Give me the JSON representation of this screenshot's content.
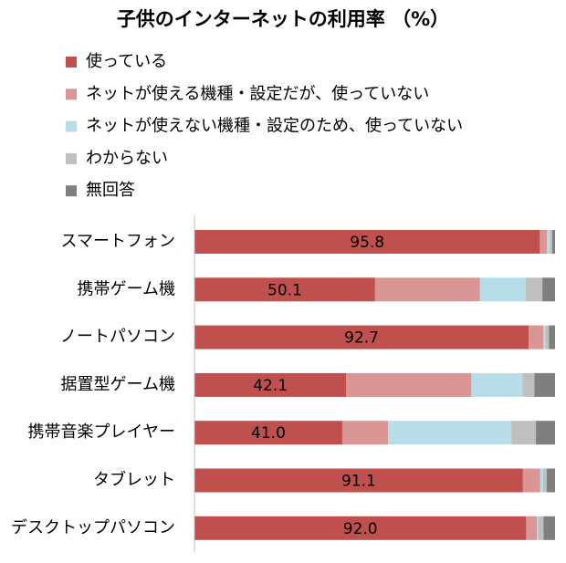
{
  "chart_data": {
    "type": "stacked-bar-horizontal",
    "title": "子供のインターネットの利用率 （%）",
    "categories": [
      "スマートフォン",
      "携帯ゲーム機",
      "ノートパソコン",
      "据置型ゲーム機",
      "携帯音楽プレイヤー",
      "タブレット",
      "デスクトップパソコン"
    ],
    "series": [
      {
        "name": "使っている",
        "color": "#c0504d",
        "values": [
          95.8,
          50.1,
          92.7,
          42.1,
          41.0,
          91.1,
          92.0
        ],
        "value_labels": [
          "95.8",
          "50.1",
          "92.7",
          "42.1",
          "41.0",
          "91.1",
          "92.0"
        ]
      },
      {
        "name": "ネットが使える機種・設定だが、使っていない",
        "color": "#d99694",
        "values": [
          2.0,
          29.1,
          4.1,
          34.7,
          12.7,
          4.8,
          3.0
        ]
      },
      {
        "name": "ネットが使えない機種・設定のため、使っていない",
        "color": "#b7dee8",
        "values": [
          0.8,
          12.7,
          0.5,
          14.2,
          34.2,
          0.8,
          0.3
        ]
      },
      {
        "name": "わからない",
        "color": "#bfbfbf",
        "values": [
          0.6,
          4.6,
          1.0,
          3.3,
          6.8,
          1.0,
          1.5
        ]
      },
      {
        "name": "無回答",
        "color": "#7f7f7f",
        "values": [
          0.8,
          3.5,
          1.7,
          5.7,
          5.3,
          2.3,
          3.2
        ]
      }
    ],
    "xlim": [
      0,
      100
    ]
  }
}
